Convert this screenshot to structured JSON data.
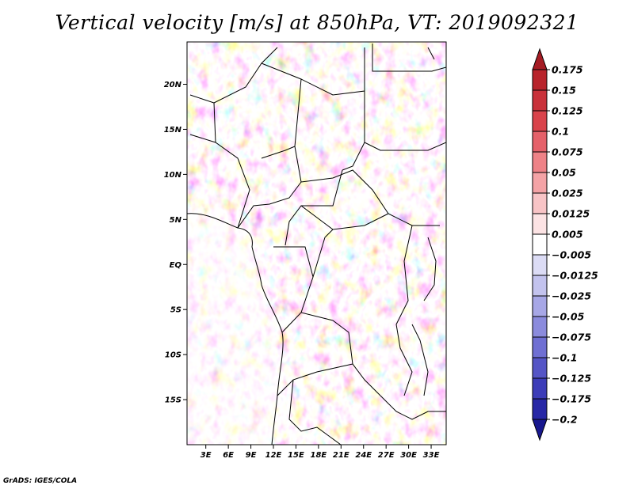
{
  "title": "Vertical velocity [m/s] at 850hPa, VT: 2019092321",
  "footer": "GrADS: IGES/COLA",
  "map": {
    "lon_labels": [
      "3E",
      "6E",
      "9E",
      "12E",
      "15E",
      "18E",
      "21E",
      "24E",
      "27E",
      "30E",
      "33E"
    ],
    "lat_labels": [
      "20N",
      "15N",
      "10N",
      "5N",
      "EQ",
      "5S",
      "10S",
      "15S"
    ]
  },
  "colorbar": {
    "labels": [
      "0.175",
      "0.15",
      "0.125",
      "0.1",
      "0.075",
      "0.05",
      "0.025",
      "0.0125",
      "0.005",
      "−0.005",
      "−0.0125",
      "−0.025",
      "−0.05",
      "−0.075",
      "−0.1",
      "−0.125",
      "−0.175",
      "−0.2"
    ],
    "colors": [
      "#a51c24",
      "#b8232b",
      "#c9313a",
      "#d9434b",
      "#e5616a",
      "#ee8287",
      "#f4a3a6",
      "#f8c4c6",
      "#fce3e4",
      "#ffffff",
      "#dcdcf5",
      "#c3c3ee",
      "#a7a7e6",
      "#8b8bdd",
      "#6f6fd3",
      "#5555c6",
      "#3c3cb8",
      "#2727a6",
      "#18188f"
    ]
  }
}
